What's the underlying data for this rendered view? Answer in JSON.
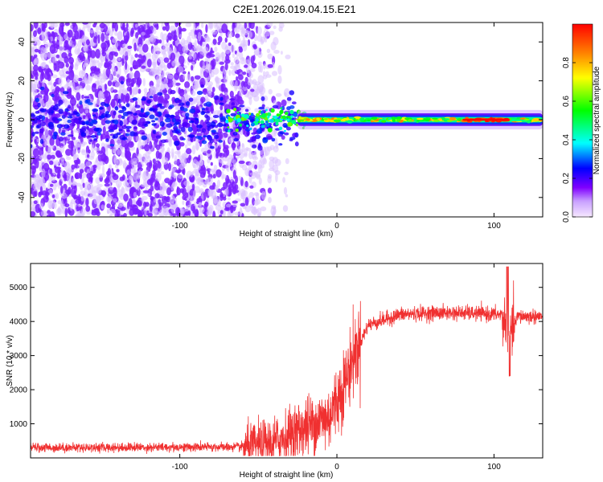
{
  "figure_title": "C2E1.2026.019.04.15.E21",
  "chart_data": [
    {
      "type": "heatmap",
      "title": "",
      "xlabel": "Height of straight line (km)",
      "ylabel": "Frequency (Hz)",
      "xlim": [
        -195,
        131
      ],
      "ylim": [
        -50,
        50
      ],
      "x_ticks": [
        -100,
        0,
        100
      ],
      "x_tick_labels": [
        "-100",
        "0",
        "100"
      ],
      "y_ticks": [
        40,
        20,
        0,
        -20,
        -40
      ],
      "y_tick_labels": [
        "40",
        "20",
        "0",
        "-20",
        "-40"
      ],
      "colorbar": {
        "label": "Normalized spectral amplitude",
        "range": [
          0.0,
          1.0
        ],
        "ticks": [
          0.0,
          0.2,
          0.4,
          0.6,
          0.8
        ],
        "tick_labels": [
          "0.0",
          "0.2",
          "0.4",
          "0.6",
          "0.8"
        ],
        "colors": [
          "#f0e0ff",
          "#8000ff",
          "#0000ff",
          "#00ffff",
          "#00ff00",
          "#ffff00",
          "#ff8000",
          "#ff0000"
        ]
      },
      "features": {
        "noise_region_x": [
          -195,
          -30
        ],
        "noise_color_strong": "#7a1fff",
        "noise_color_weak": "#d8c0ff",
        "transition_x": [
          -75,
          -25
        ],
        "signal_band_x": [
          -25,
          131
        ],
        "signal_band_freq_halfwidth_hz": 2.5,
        "signal_peak_x": [
          80,
          110
        ],
        "signal_peak_value": 1.0
      },
      "grid": false
    },
    {
      "type": "line",
      "title": "",
      "xlabel": "Height of straight line (km)",
      "ylabel": "SNR (10 * v/v)",
      "xlim": [
        -195,
        131
      ],
      "ylim": [
        0,
        5700
      ],
      "x_ticks": [
        -100,
        0,
        100
      ],
      "x_tick_labels": [
        "-100",
        "0",
        "100"
      ],
      "y_ticks": [
        1000,
        2000,
        3000,
        4000,
        5000
      ],
      "y_tick_labels": [
        "1000",
        "2000",
        "3000",
        "4000",
        "5000"
      ],
      "series": [
        {
          "name": "SNR",
          "color": "#f03030",
          "key_points_x": [
            -195,
            -60,
            -40,
            -20,
            -5,
            5,
            10,
            20,
            40,
            60,
            80,
            105,
            110,
            115,
            131
          ],
          "key_points_y": [
            300,
            320,
            450,
            900,
            1200,
            2200,
            2900,
            3900,
            4200,
            4250,
            4250,
            4200,
            3500,
            4150,
            4150
          ],
          "notes": "noisy trace; low flat floor ~300 then steep rise near 0 km, plateau ~4200, spike/dip near 110 km"
        }
      ],
      "grid": false
    }
  ]
}
